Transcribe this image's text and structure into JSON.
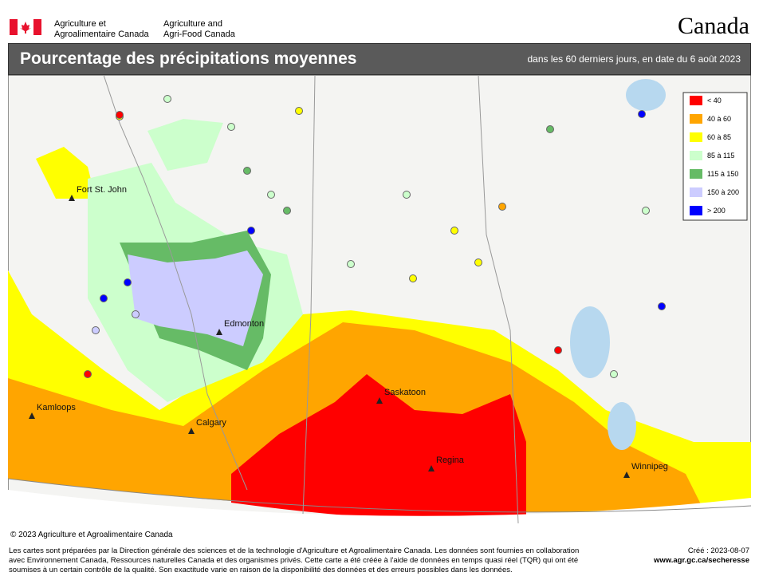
{
  "header": {
    "agency_fr": [
      "Agriculture et",
      "Agroalimentaire Canada"
    ],
    "agency_en": [
      "Agriculture and",
      "Agri-Food Canada"
    ],
    "wordmark": "Canada"
  },
  "title": "Pourcentage des précipitations moyennes",
  "subtitle": "dans les 60 derniers jours, en date du 6 août 2023",
  "legend": [
    {
      "label": "< 40",
      "color": "#ff0000"
    },
    {
      "label": "40 à 60",
      "color": "#ffa500"
    },
    {
      "label": "60 à 85",
      "color": "#ffff00"
    },
    {
      "label": "85 à 115",
      "color": "#ccffcc"
    },
    {
      "label": "115 à 150",
      "color": "#66bb66"
    },
    {
      "label": "150 à 200",
      "color": "#ccccff"
    },
    {
      "label": "> 200",
      "color": "#0000ff"
    }
  ],
  "cities": [
    "Fort St. John",
    "Edmonton",
    "Kamloops",
    "Calgary",
    "Saskatoon",
    "Regina",
    "Winnipeg"
  ],
  "copyright": "© 2023 Agriculture et Agroalimentaire Canada",
  "footer": {
    "note": "Les cartes sont préparées par la Direction générale des sciences et de la technologie d'Agriculture et Agroalimentaire Canada. Les données sont fournies en collaboration avec Environnement Canada, Ressources naturelles Canada et des organismes privés. Cette carte a été créée à l'aide de données en temps quasi réel (TQR) qui ont été soumises à un certain contrôle de la qualité. Son exactitude varie en raison de la disponibilité des données et des erreurs possibles dans les données.",
    "created": "Créé : 2023-08-07",
    "url": "www.agr.gc.ca/secheresse"
  }
}
